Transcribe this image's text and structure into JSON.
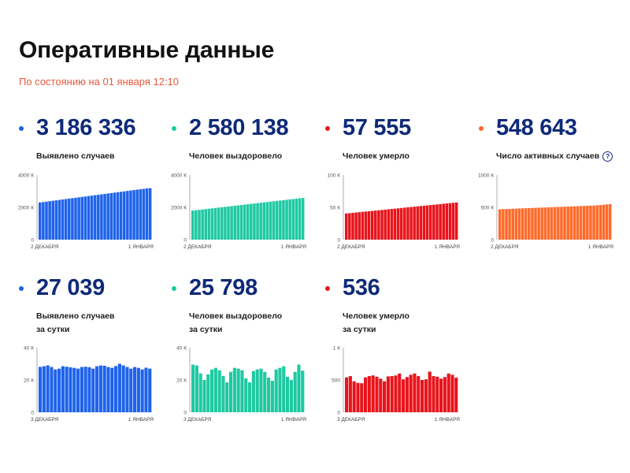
{
  "header": {
    "title": "Оперативные данные",
    "subtitle": "По состоянию на 01 января 12:10"
  },
  "colors": {
    "blue": "#1f63ea",
    "teal": "#1ec9a2",
    "red": "#e8141c",
    "orange": "#ff6a2a",
    "number": "#0e2a78",
    "subtitle": "#e8593b"
  },
  "cards": [
    {
      "value": "3 186 336",
      "label_lines": [
        "Выявлено случаев"
      ],
      "color": "#1f63ea",
      "help": false
    },
    {
      "value": "2 580 138",
      "label_lines": [
        "Человек выздоровело"
      ],
      "color": "#1ec9a2",
      "help": false
    },
    {
      "value": "57 555",
      "label_lines": [
        "Человек умерло"
      ],
      "color": "#e8141c",
      "help": false
    },
    {
      "value": "548 643",
      "label_lines": [
        "Число активных случаев"
      ],
      "color": "#ff6a2a",
      "help": true,
      "help_icon": "question-circle-icon",
      "help_text": "?"
    },
    {
      "value": "27 039",
      "label_lines": [
        "Выявлено случаев",
        "за сутки"
      ],
      "color": "#1f63ea",
      "help": false
    },
    {
      "value": "25 798",
      "label_lines": [
        "Человек выздоровело",
        "за сутки"
      ],
      "color": "#1ec9a2",
      "help": false
    },
    {
      "value": "536",
      "label_lines": [
        "Человек умерло",
        "за сутки"
      ],
      "color": "#e8141c",
      "help": false
    }
  ],
  "chart_data": [
    {
      "type": "bar",
      "color": "#1f63ea",
      "x_start_label": "2 ДЕКАБРЯ",
      "x_end_label": "1 ЯНВАРЯ",
      "y_ticks": [
        {
          "value": 0,
          "label": "0"
        },
        {
          "value": 2000,
          "label": "2000 К"
        },
        {
          "value": 4000,
          "label": "4000 К"
        }
      ],
      "ylim": [
        0,
        4000
      ],
      "values": [
        2300,
        2327,
        2353,
        2380,
        2406,
        2433,
        2459,
        2486,
        2512,
        2539,
        2565,
        2592,
        2618,
        2645,
        2671,
        2698,
        2724,
        2751,
        2777,
        2804,
        2830,
        2857,
        2883,
        2910,
        2936,
        2963,
        2989,
        3016,
        3042,
        3069,
        3095,
        3120,
        3145,
        3170,
        3186
      ]
    },
    {
      "type": "bar",
      "color": "#1ec9a2",
      "x_start_label": "2 ДЕКАБРЯ",
      "x_end_label": "1 ЯНВАРЯ",
      "y_ticks": [
        {
          "value": 0,
          "label": "0"
        },
        {
          "value": 2000,
          "label": "2000 К"
        },
        {
          "value": 4000,
          "label": "4000 К"
        }
      ],
      "ylim": [
        0,
        4000
      ],
      "values": [
        1800,
        1823,
        1846,
        1869,
        1892,
        1915,
        1938,
        1961,
        1984,
        2007,
        2030,
        2053,
        2076,
        2099,
        2122,
        2145,
        2168,
        2191,
        2214,
        2237,
        2260,
        2283,
        2306,
        2329,
        2352,
        2375,
        2398,
        2421,
        2444,
        2467,
        2490,
        2513,
        2536,
        2559,
        2580
      ]
    },
    {
      "type": "bar",
      "color": "#e8141c",
      "x_start_label": "2 ДЕКАБРЯ",
      "x_end_label": "1 ЯНВАРЯ",
      "y_ticks": [
        {
          "value": 0,
          "label": "0"
        },
        {
          "value": 50,
          "label": "50 К"
        },
        {
          "value": 100,
          "label": "100 К"
        }
      ],
      "ylim": [
        0,
        100
      ],
      "values": [
        40.5,
        41.0,
        41.5,
        42.0,
        42.5,
        43.0,
        43.5,
        44.0,
        44.5,
        45.0,
        45.5,
        46.0,
        46.5,
        47.0,
        47.5,
        48.0,
        48.5,
        49.0,
        49.5,
        50.0,
        50.5,
        51.0,
        51.5,
        52.0,
        52.5,
        53.0,
        53.5,
        54.0,
        54.5,
        55.0,
        55.5,
        56.0,
        56.5,
        57.0,
        57.6
      ]
    },
    {
      "type": "bar",
      "color": "#ff6a2a",
      "x_start_label": "2 ДЕКАБРЯ",
      "x_end_label": "1 ЯНВАРЯ",
      "y_ticks": [
        {
          "value": 0,
          "label": "0"
        },
        {
          "value": 500,
          "label": "500 К"
        },
        {
          "value": 1000,
          "label": "1000 К"
        }
      ],
      "ylim": [
        0,
        1000
      ],
      "values": [
        470,
        472,
        474,
        476,
        478,
        480,
        482,
        484,
        486,
        488,
        490,
        492,
        494,
        496,
        498,
        500,
        502,
        504,
        506,
        508,
        510,
        512,
        514,
        516,
        518,
        520,
        522,
        524,
        526,
        528,
        532,
        536,
        540,
        545,
        549
      ]
    },
    {
      "type": "bar",
      "color": "#1f63ea",
      "x_start_label": "3 ДЕКАБРЯ",
      "x_end_label": "1 ЯНВАРЯ",
      "y_ticks": [
        {
          "value": 0,
          "label": "0"
        },
        {
          "value": 20,
          "label": "20 К"
        },
        {
          "value": 40,
          "label": "40 К"
        }
      ],
      "ylim": [
        0,
        40
      ],
      "values": [
        28.1,
        28.5,
        29.0,
        28.0,
        26.5,
        27.0,
        28.5,
        28.2,
        27.8,
        27.5,
        27.0,
        28.0,
        28.2,
        27.9,
        27.0,
        28.5,
        29.0,
        28.8,
        28.0,
        27.5,
        28.6,
        30.0,
        29.0,
        28.0,
        27.0,
        28.0,
        27.5,
        26.5,
        27.6,
        27.0
      ]
    },
    {
      "type": "bar",
      "color": "#1ec9a2",
      "x_start_label": "3 ДЕКАБРЯ",
      "x_end_label": "1 ЯНВАРЯ",
      "y_ticks": [
        {
          "value": 0,
          "label": "0"
        },
        {
          "value": 20,
          "label": "20 К"
        },
        {
          "value": 40,
          "label": "40 К"
        }
      ],
      "ylim": [
        0,
        40
      ],
      "values": [
        29.5,
        29.0,
        24.0,
        20.0,
        23.5,
        26.5,
        27.5,
        26.0,
        22.5,
        18.5,
        25.0,
        27.5,
        27.0,
        26.0,
        21.0,
        18.5,
        25.5,
        26.5,
        27.0,
        25.0,
        21.5,
        19.5,
        26.5,
        27.5,
        28.5,
        22.0,
        20.0,
        25.0,
        29.5,
        25.8
      ]
    },
    {
      "type": "bar",
      "color": "#e8141c",
      "x_start_label": "3 ДЕКАБРЯ",
      "x_end_label": "1 ЯНВАРЯ",
      "y_ticks": [
        {
          "value": 0,
          "label": "0"
        },
        {
          "value": 500,
          "label": "500"
        },
        {
          "value": 1000,
          "label": "1 К"
        }
      ],
      "ylim": [
        0,
        1000
      ],
      "values": [
        540,
        560,
        480,
        455,
        450,
        540,
        560,
        570,
        550,
        520,
        480,
        555,
        560,
        570,
        600,
        510,
        545,
        580,
        600,
        560,
        500,
        510,
        630,
        560,
        550,
        520,
        545,
        600,
        580,
        536
      ]
    }
  ]
}
